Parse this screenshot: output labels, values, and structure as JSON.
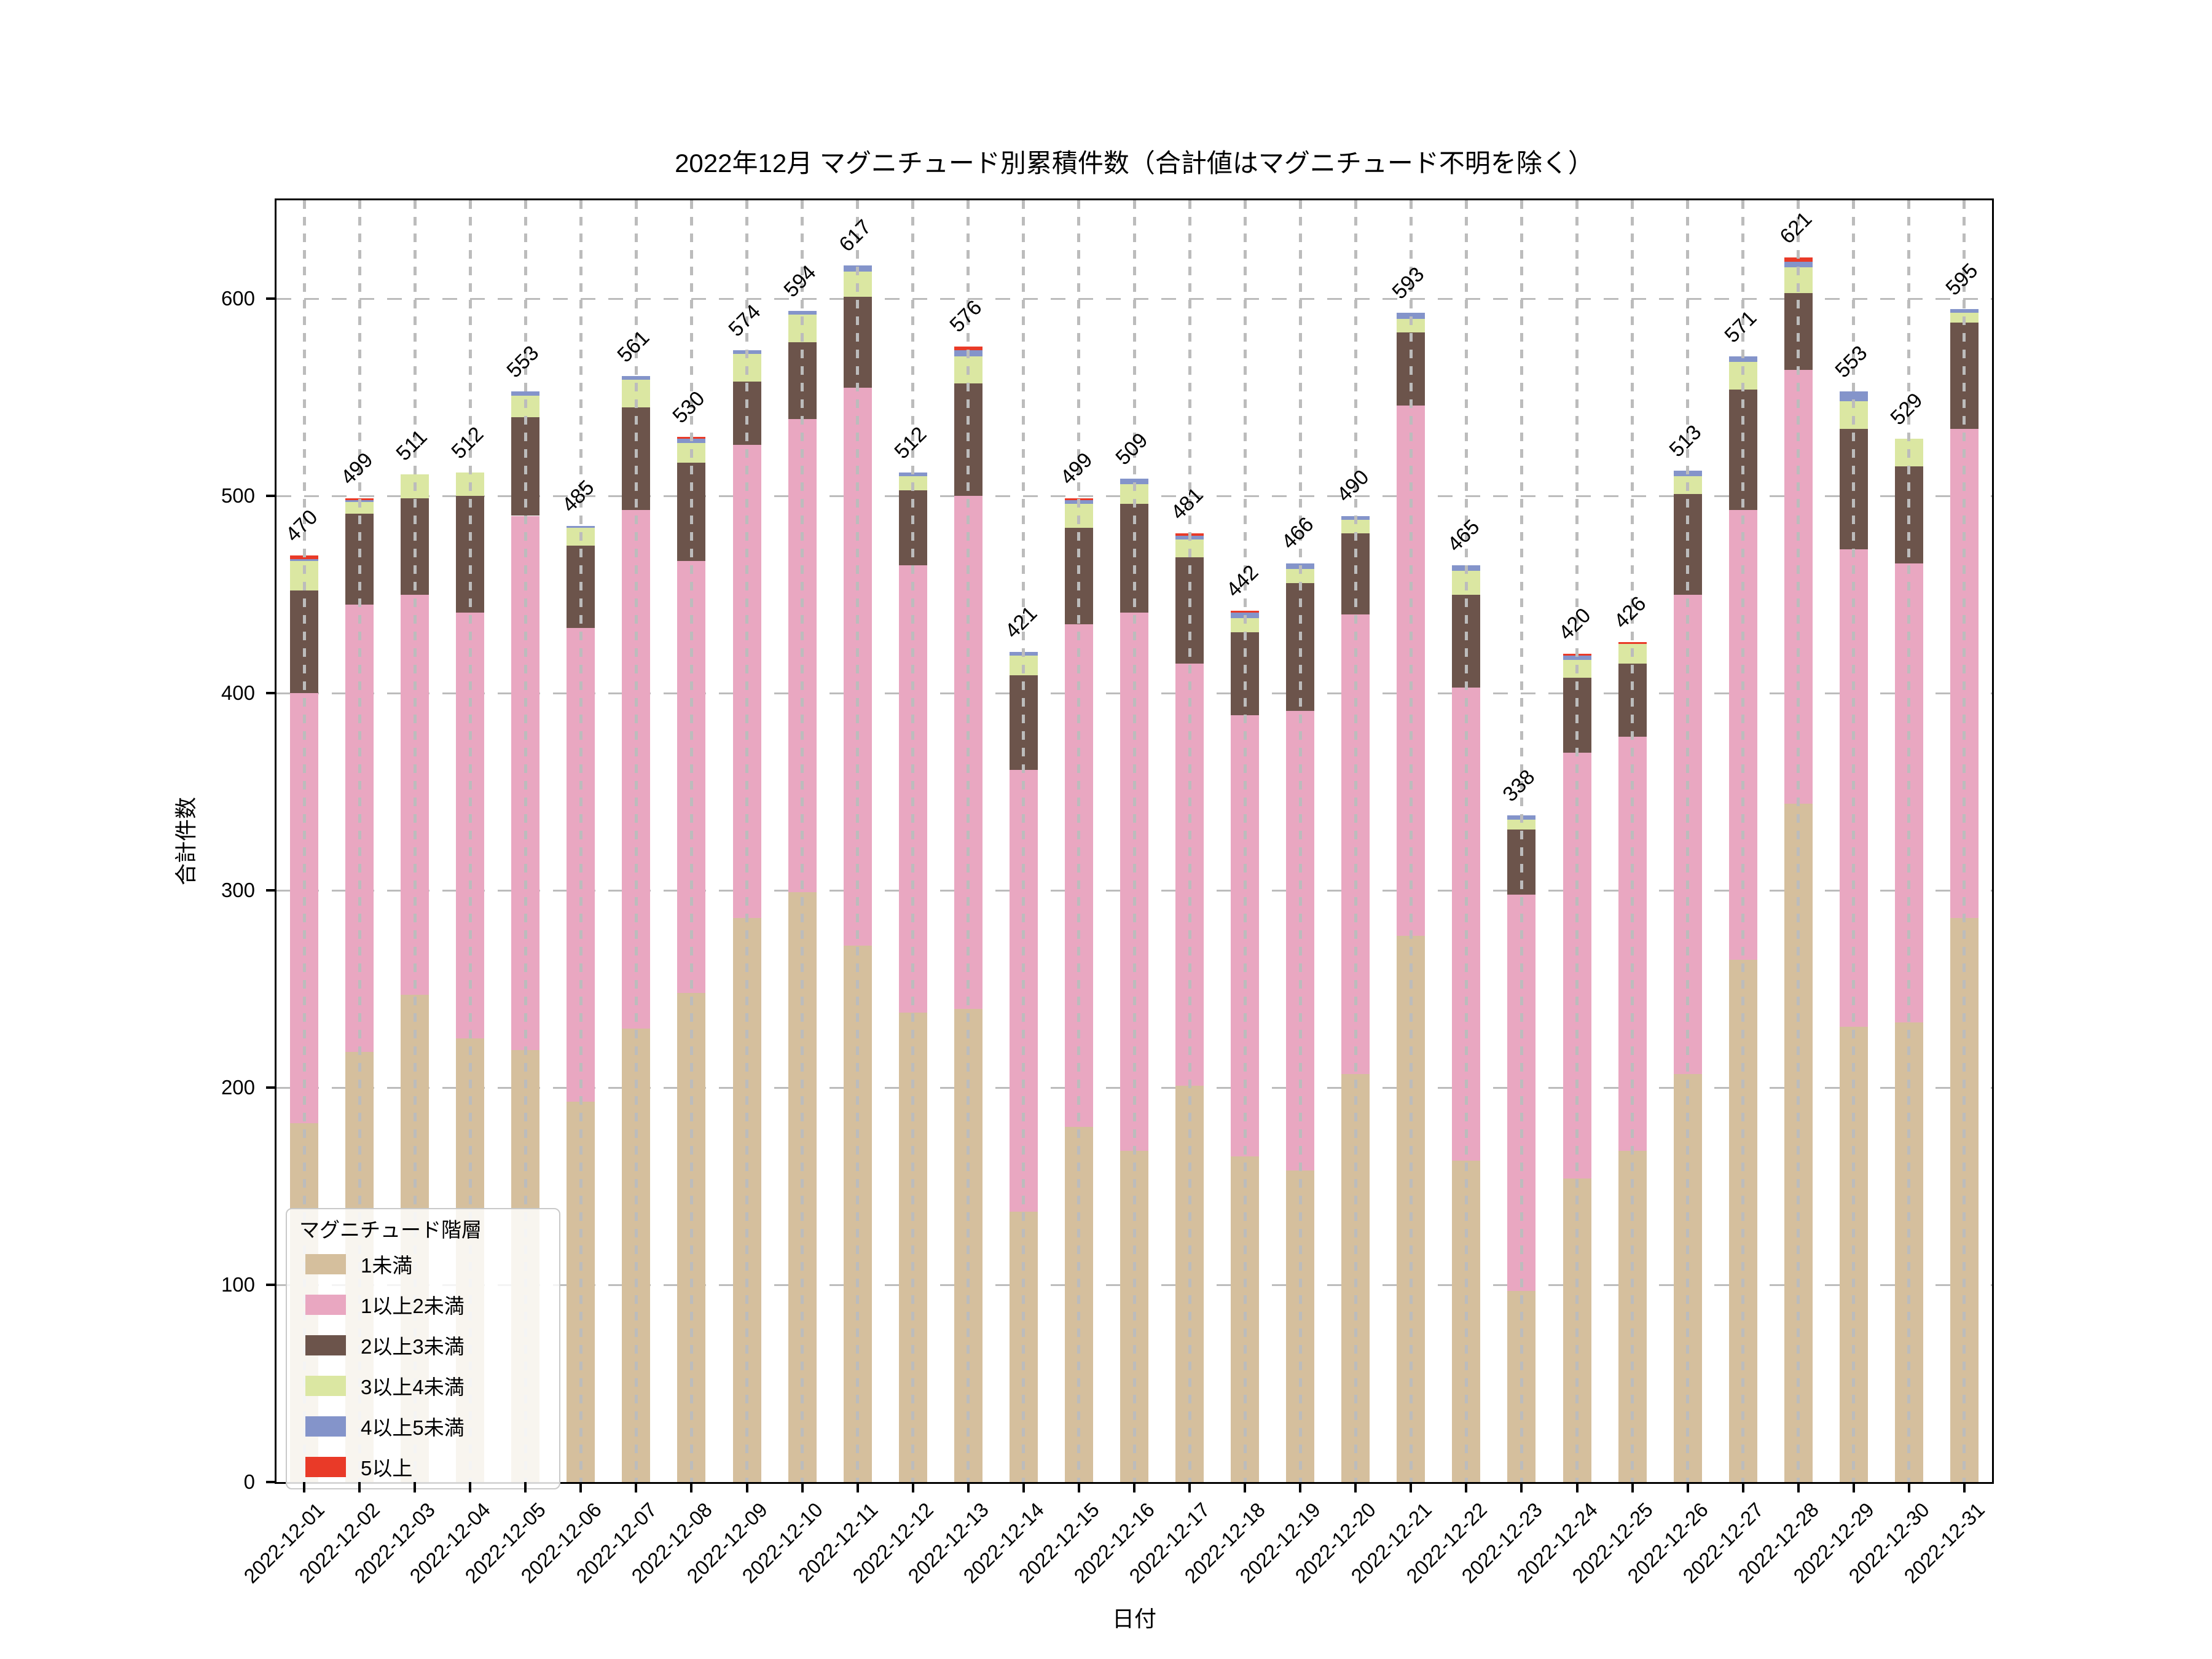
{
  "chart_data": {
    "type": "bar",
    "stacked": true,
    "title": "2022年12月 マグニチュード別累積件数（合計値はマグニチュード不明を除く）",
    "xlabel": "日付",
    "ylabel": "合計件数",
    "legend_title": "マグニチュード階層",
    "ylim": [
      0,
      650
    ],
    "yticks": [
      0,
      100,
      200,
      300,
      400,
      500,
      600
    ],
    "grid": "dashed horizontal and vertical, light gray",
    "legend_position": "lower left",
    "categories": [
      "2022-12-01",
      "2022-12-02",
      "2022-12-03",
      "2022-12-04",
      "2022-12-05",
      "2022-12-06",
      "2022-12-07",
      "2022-12-08",
      "2022-12-09",
      "2022-12-10",
      "2022-12-11",
      "2022-12-12",
      "2022-12-13",
      "2022-12-14",
      "2022-12-15",
      "2022-12-16",
      "2022-12-17",
      "2022-12-18",
      "2022-12-19",
      "2022-12-20",
      "2022-12-21",
      "2022-12-22",
      "2022-12-23",
      "2022-12-24",
      "2022-12-25",
      "2022-12-26",
      "2022-12-27",
      "2022-12-28",
      "2022-12-29",
      "2022-12-30",
      "2022-12-31"
    ],
    "series": [
      {
        "name": "1未満",
        "color": "#d5bf9d",
        "values": [
          182,
          218,
          247,
          225,
          219,
          193,
          230,
          248,
          286,
          299,
          272,
          238,
          240,
          137,
          180,
          168,
          201,
          165,
          158,
          207,
          277,
          163,
          97,
          154,
          168,
          207,
          265,
          344,
          231,
          233,
          286
        ]
      },
      {
        "name": "1以上2未満",
        "color": "#e9a7c1",
        "values": [
          218,
          227,
          203,
          216,
          271,
          240,
          263,
          219,
          240,
          240,
          283,
          227,
          260,
          224,
          255,
          273,
          214,
          224,
          233,
          233,
          269,
          240,
          201,
          216,
          210,
          243,
          228,
          220,
          242,
          233,
          248
        ]
      },
      {
        "name": "2以上3未満",
        "color": "#6c544b",
        "values": [
          52,
          46,
          49,
          59,
          50,
          42,
          52,
          50,
          32,
          39,
          46,
          38,
          57,
          48,
          49,
          55,
          54,
          42,
          65,
          41,
          37,
          47,
          33,
          38,
          37,
          51,
          61,
          39,
          61,
          49,
          54
        ]
      },
      {
        "name": "3以上4未満",
        "color": "#dbe7a2",
        "values": [
          15,
          6,
          12,
          12,
          11,
          9,
          14,
          10,
          14,
          14,
          13,
          7,
          14,
          10,
          12,
          10,
          9,
          7,
          7,
          7,
          7,
          12,
          5,
          9,
          10,
          9,
          14,
          13,
          14,
          14,
          5
        ]
      },
      {
        "name": "4以上5未満",
        "color": "#8494ca",
        "values": [
          1,
          1,
          0,
          0,
          2,
          1,
          2,
          2,
          2,
          2,
          3,
          2,
          3,
          2,
          2,
          3,
          2,
          3,
          3,
          2,
          3,
          3,
          2,
          2,
          0,
          3,
          3,
          3,
          5,
          0,
          2
        ]
      },
      {
        "name": "5以上",
        "color": "#e93a28",
        "values": [
          2,
          1,
          0,
          0,
          0,
          0,
          0,
          1,
          0,
          0,
          0,
          0,
          2,
          0,
          1,
          0,
          1,
          1,
          0,
          0,
          0,
          0,
          0,
          1,
          1,
          0,
          0,
          2,
          0,
          0,
          0
        ]
      }
    ],
    "totals": [
      470,
      499,
      511,
      512,
      553,
      485,
      561,
      530,
      574,
      594,
      617,
      512,
      576,
      421,
      499,
      509,
      481,
      442,
      466,
      490,
      593,
      465,
      338,
      420,
      426,
      513,
      571,
      621,
      553,
      529,
      595
    ]
  }
}
